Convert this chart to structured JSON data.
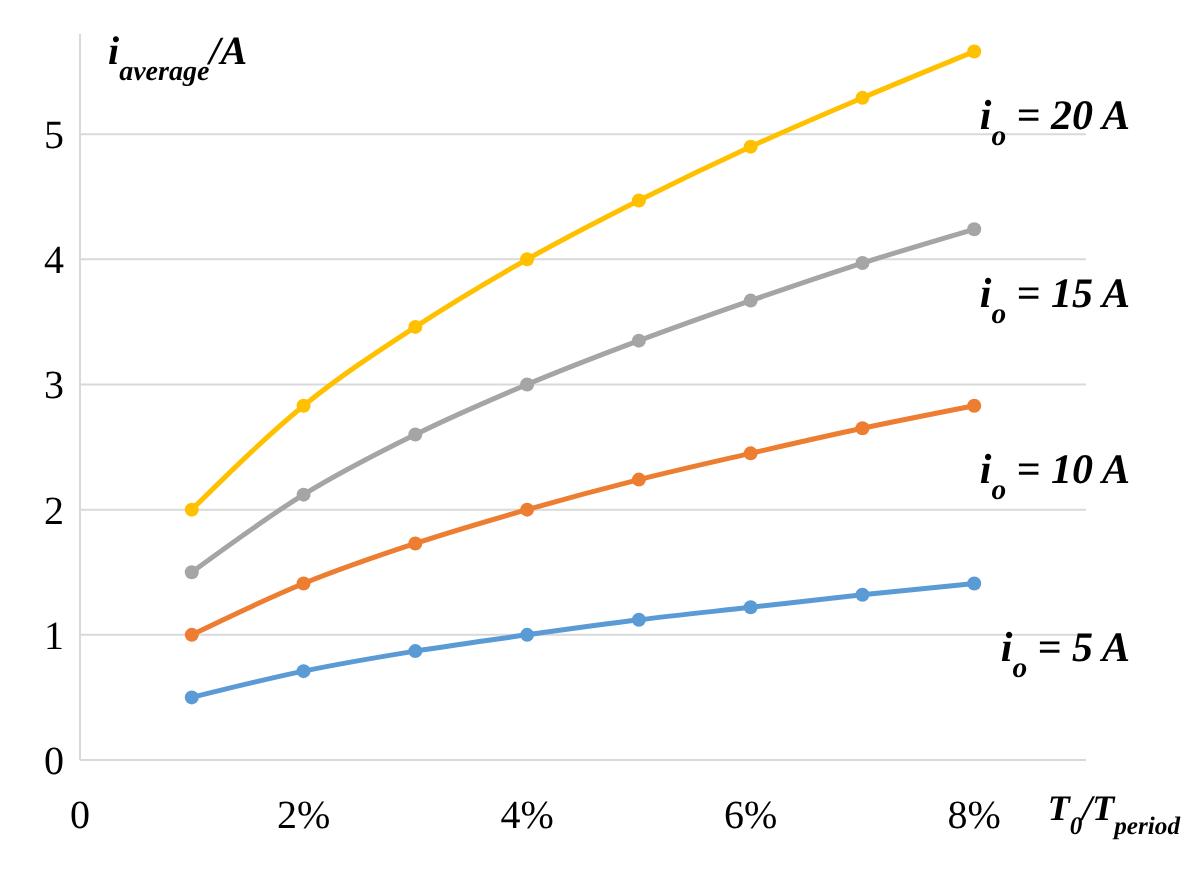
{
  "chart_data": {
    "type": "line",
    "ylabel": "i$_{average}$/A",
    "xlabel": "T$_{0}$/T$_{period}$",
    "x": [
      1,
      2,
      3,
      4,
      5,
      6,
      7,
      8
    ],
    "series": [
      {
        "name": "i$_{o}$ = 5 A",
        "color": "#5b9bd5",
        "values": [
          0.5,
          0.71,
          0.87,
          1.0,
          1.12,
          1.22,
          1.32,
          1.41
        ]
      },
      {
        "name": "i$_{o}$ = 10 A",
        "color": "#ed7d31",
        "values": [
          1.0,
          1.41,
          1.73,
          2.0,
          2.24,
          2.45,
          2.65,
          2.83
        ]
      },
      {
        "name": "i$_{o}$ = 15 A",
        "color": "#a5a5a5",
        "values": [
          1.5,
          2.12,
          2.6,
          3.0,
          3.35,
          3.67,
          3.97,
          4.24
        ]
      },
      {
        "name": "i$_{o}$ = 20 A",
        "color": "#ffc000",
        "values": [
          2.0,
          2.83,
          3.46,
          4.0,
          4.47,
          4.9,
          5.29,
          5.66
        ]
      }
    ],
    "xlim": [
      0,
      9
    ],
    "xticks": [
      0,
      {
        "value": 2,
        "label": "2%"
      },
      {
        "value": 4,
        "label": "4%"
      },
      {
        "value": 6,
        "label": "6%"
      },
      {
        "value": 8,
        "label": "8%"
      }
    ],
    "ylim": [
      0,
      5.8
    ],
    "yticks": [
      0,
      1,
      2,
      3,
      4,
      5
    ],
    "grid": "y",
    "marker": "circle",
    "line_style": "solid"
  }
}
